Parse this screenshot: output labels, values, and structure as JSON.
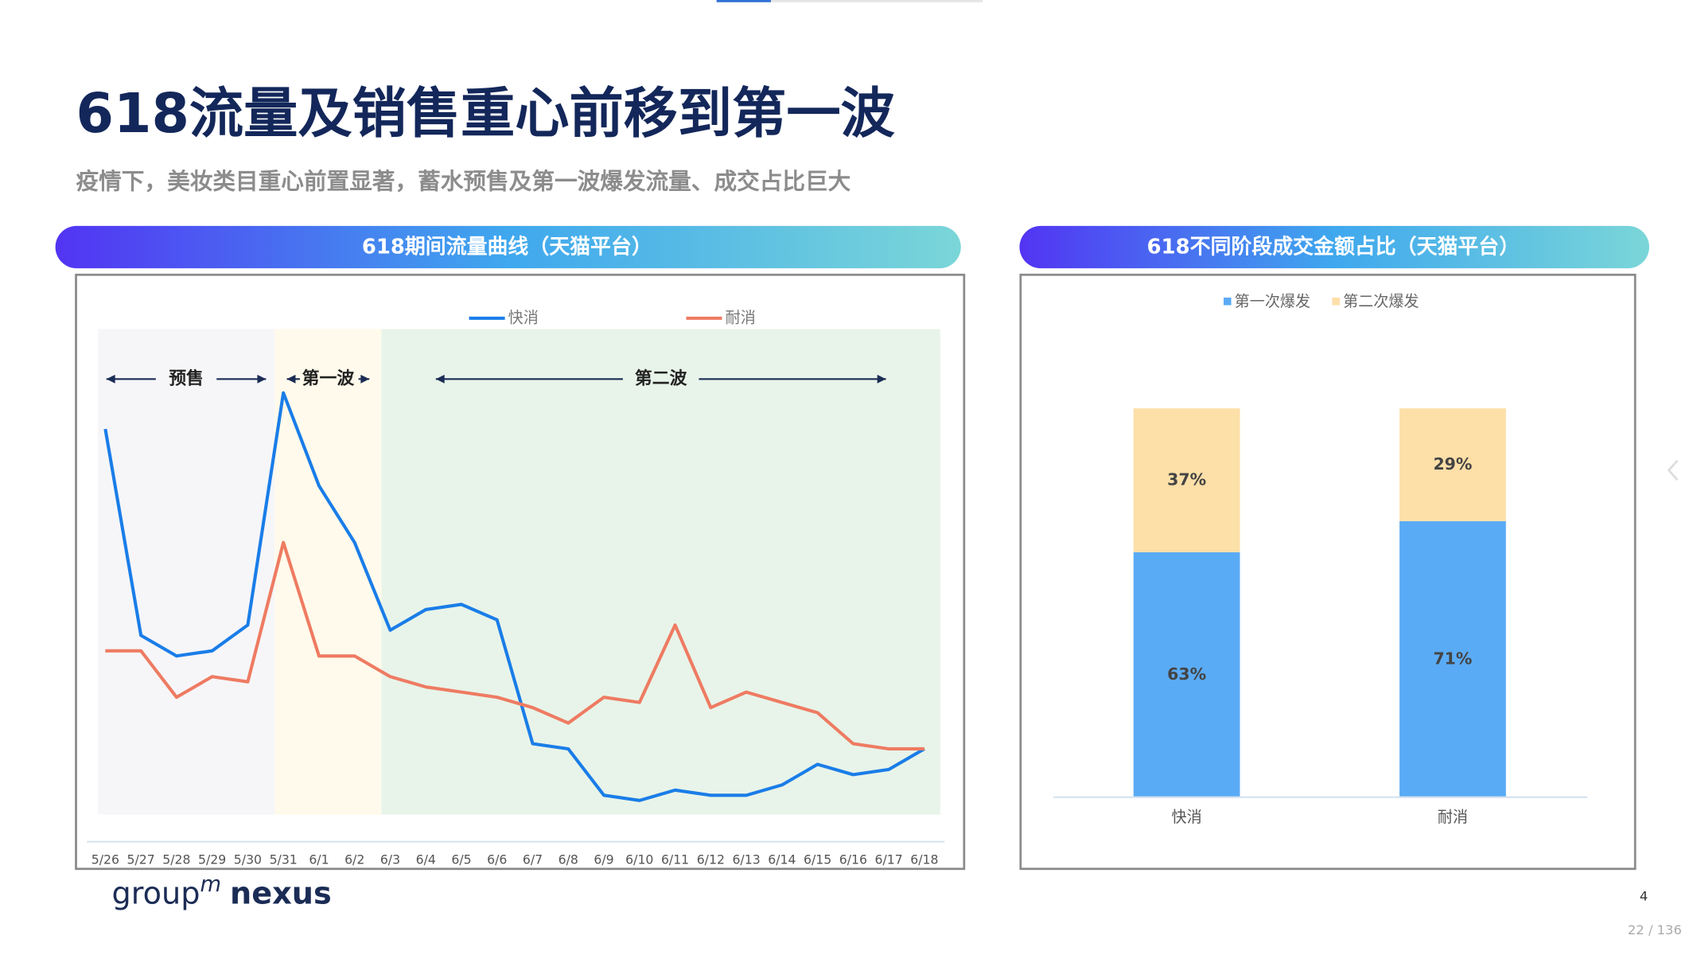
{
  "title": "618流量及销售重心前移到第一波",
  "subtitle": "疫情下，美妆类目重心前置显著，蓄水预售及第一波爆发流量、成交占比巨大",
  "logo": {
    "group": "group",
    "m": "m",
    "nexus": "nexus"
  },
  "page_number": "4",
  "page_counter": "22 / 136",
  "chart_data": [
    {
      "type": "line",
      "title": "618期间流量曲线（天猫平台）",
      "categories": [
        "5/26",
        "5/27",
        "5/28",
        "5/29",
        "5/30",
        "5/31",
        "6/1",
        "6/2",
        "6/3",
        "6/4",
        "6/5",
        "6/6",
        "6/7",
        "6/8",
        "6/9",
        "6/10",
        "6/11",
        "6/12",
        "6/13",
        "6/14",
        "6/15",
        "6/16",
        "6/17",
        "6/18"
      ],
      "series": [
        {
          "name": "快消",
          "color": "#1a7de8",
          "values": [
            80,
            40,
            36,
            37,
            42,
            87,
            69,
            58,
            41,
            45,
            46,
            43,
            19,
            18,
            9,
            8,
            10,
            9,
            9,
            11,
            15,
            13,
            14,
            18
          ]
        },
        {
          "name": "耐消",
          "color": "#ee7b62",
          "values": [
            37,
            37,
            28,
            32,
            31,
            58,
            36,
            36,
            32,
            30,
            29,
            28,
            26,
            23,
            28,
            27,
            42,
            26,
            29,
            27,
            25,
            19,
            18,
            18
          ]
        }
      ],
      "ylim": [
        0,
        100
      ],
      "phases": [
        {
          "label": "预售",
          "from": "5/26",
          "to": "5/31",
          "color": "#f6f6f8"
        },
        {
          "label": "第一波",
          "from": "5/31",
          "to": "6/3",
          "color": "#fffaeb"
        },
        {
          "label": "第二波",
          "from": "6/3",
          "to": "6/18",
          "color": "#e8f4e9"
        }
      ]
    },
    {
      "type": "bar",
      "title": "618不同阶段成交金额占比（天猫平台）",
      "stacked": true,
      "categories": [
        "快消",
        "耐消"
      ],
      "series": [
        {
          "name": "第一次爆发",
          "color": "#5aabf5",
          "values": [
            63,
            71
          ],
          "value_labels": [
            "63%",
            "71%"
          ]
        },
        {
          "name": "第二次爆发",
          "color": "#fddfa8",
          "values": [
            37,
            29
          ],
          "value_labels": [
            "37%",
            "29%"
          ]
        }
      ],
      "ylim": [
        0,
        100
      ]
    }
  ]
}
